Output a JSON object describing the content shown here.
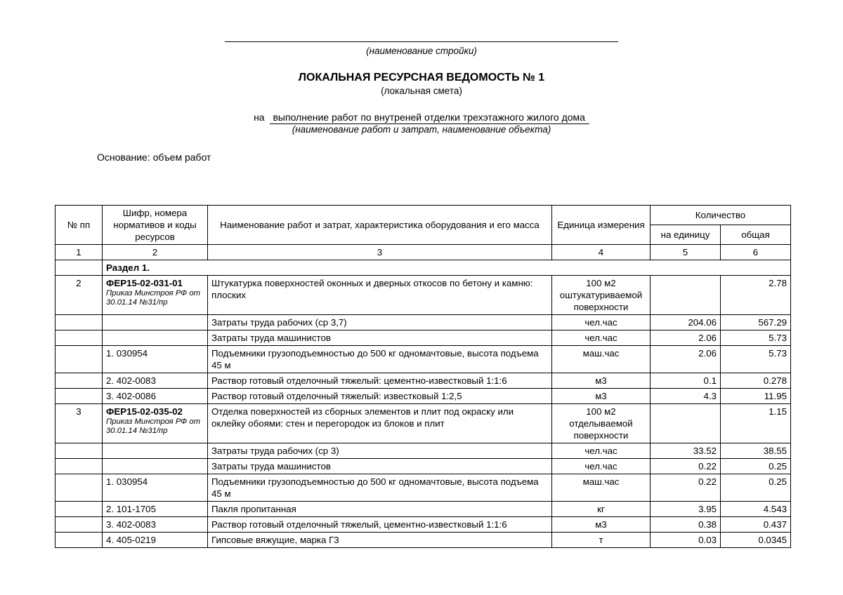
{
  "header": {
    "construction_name_caption": "(наименование стройки)",
    "doc_title": "ЛОКАЛЬНАЯ РЕСУРСНАЯ ВЕДОМОСТЬ  № 1",
    "doc_subtitle": "(локальная смета)",
    "na_prefix": "на",
    "na_text": "выполнение работ по внутреней отделки трехэтажного жилого дома",
    "na_caption": "(наименование работ и затрат, наименование объекта)",
    "basis": "Основание: объем работ"
  },
  "columns": {
    "c1": "№ пп",
    "c2": "Шифр, номера нормативов и коды ресурсов",
    "c3": "Наименование работ и затрат, характеристика оборудования и его масса",
    "c4": "Единица измерения",
    "c5_group": "Количество",
    "c5": "на единицу",
    "c6": "общая",
    "n1": "1",
    "n2": "2",
    "n3": "3",
    "n4": "4",
    "n5": "5",
    "n6": "6"
  },
  "section": {
    "label": "Раздел 1."
  },
  "rows": [
    {
      "num": "2",
      "code": "ФЕР15-02-031-01",
      "code_sub": "Приказ Минстроя РФ от 30.01.14 №31/пр",
      "name": "Штукатурка поверхностей оконных и дверных откосов по бетону и камню: плоских",
      "unit": "100 м2 оштукатуриваемой поверхности",
      "per": "",
      "total": "2.78"
    },
    {
      "num": "",
      "code": "",
      "code_sub": "",
      "name": "Затраты труда рабочих (ср 3,7)",
      "unit": "чел.час",
      "per": "204.06",
      "total": "567.29"
    },
    {
      "num": "",
      "code": "",
      "code_sub": "",
      "name": "Затраты труда машинистов",
      "unit": "чел.час",
      "per": "2.06",
      "total": "5.73"
    },
    {
      "num": "",
      "code": "1. 030954",
      "code_sub": "",
      "name": "Подъемники грузоподъемностью до 500 кг одномачтовые, высота подъема 45 м",
      "unit": "маш.час",
      "per": "2.06",
      "total": "5.73"
    },
    {
      "num": "",
      "code": "2. 402-0083",
      "code_sub": "",
      "name": "Раствор готовый отделочный тяжелый: цементно-известковый 1:1:6",
      "unit": "м3",
      "per": "0.1",
      "total": "0.278"
    },
    {
      "num": "",
      "code": "3. 402-0086",
      "code_sub": "",
      "name": "Раствор готовый отделочный тяжелый: известковый 1:2,5",
      "unit": "м3",
      "per": "4.3",
      "total": "11.95"
    },
    {
      "num": "3",
      "code": "ФЕР15-02-035-02",
      "code_sub": "Приказ Минстроя РФ от 30.01.14 №31/пр",
      "name": "Отделка поверхностей из сборных элементов и плит под окраску или оклейку обоями: стен и перегородок из блоков и плит",
      "unit": "100 м2 отделываемой поверхности",
      "per": "",
      "total": "1.15"
    },
    {
      "num": "",
      "code": "",
      "code_sub": "",
      "name": "Затраты труда рабочих (ср 3)",
      "unit": "чел.час",
      "per": "33.52",
      "total": "38.55"
    },
    {
      "num": "",
      "code": "",
      "code_sub": "",
      "name": "Затраты труда машинистов",
      "unit": "чел.час",
      "per": "0.22",
      "total": "0.25"
    },
    {
      "num": "",
      "code": "1. 030954",
      "code_sub": "",
      "name": "Подъемники грузоподъемностью до 500 кг одномачтовые, высота подъема 45 м",
      "unit": "маш.час",
      "per": "0.22",
      "total": "0.25"
    },
    {
      "num": "",
      "code": "2. 101-1705",
      "code_sub": "",
      "name": "Пакля пропитанная",
      "unit": "кг",
      "per": "3.95",
      "total": "4.543"
    },
    {
      "num": "",
      "code": "3. 402-0083",
      "code_sub": "",
      "name": "Раствор готовый отделочный тяжелый, цементно-известковый 1:1:6",
      "unit": "м3",
      "per": "0.38",
      "total": "0.437"
    },
    {
      "num": "",
      "code": "4. 405-0219",
      "code_sub": "",
      "name": "Гипсовые вяжущие, марка Г3",
      "unit": "т",
      "per": "0.03",
      "total": "0.0345"
    }
  ]
}
